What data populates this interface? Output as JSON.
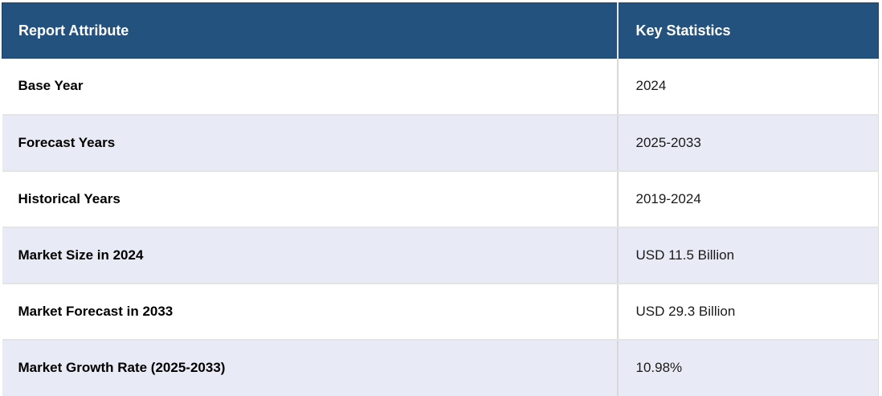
{
  "table": {
    "columns": [
      {
        "label": "Report Attribute"
      },
      {
        "label": "Key Statistics"
      }
    ],
    "rows": [
      {
        "attribute": "Base Year",
        "value": "2024"
      },
      {
        "attribute": "Forecast Years",
        "value": "2025-2033"
      },
      {
        "attribute": "Historical Years",
        "value": "2019-2024"
      },
      {
        "attribute": "Market Size in 2024",
        "value": "USD 11.5 Billion"
      },
      {
        "attribute": "Market Forecast in 2033",
        "value": "USD 29.3 Billion"
      },
      {
        "attribute": "Market Growth Rate (2025-2033)",
        "value": "10.98%"
      }
    ],
    "colors": {
      "header_bg": "#24527E",
      "header_text": "#FFFFFF",
      "row_bg": "#FFFFFF",
      "row_alt_bg": "#E8EAF5",
      "divider": "#D8D8D8",
      "label_text": "#000000",
      "value_text": "#1A1A1A"
    }
  }
}
